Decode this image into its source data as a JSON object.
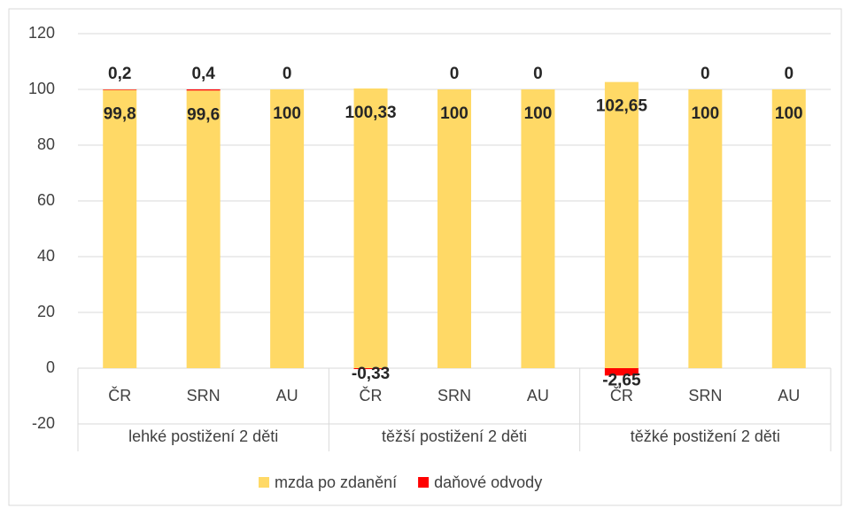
{
  "chart_data": {
    "type": "stacked_bar",
    "categories": [
      "ČR",
      "SRN",
      "AU",
      "ČR",
      "SRN",
      "AU",
      "ČR",
      "SRN",
      "AU"
    ],
    "groups": [
      "lehké postižení 2 děti",
      "těžší postižení 2 děti",
      "těžké postižení 2 děti"
    ],
    "series": [
      {
        "name": "mzda po zdanění",
        "color": "#FFD966",
        "values": [
          99.8,
          99.6,
          100,
          100.33,
          100,
          100,
          102.65,
          100,
          100
        ],
        "value_labels": [
          "99,8",
          "99,6",
          "100",
          "100,33",
          "100",
          "100",
          "102,65",
          "100",
          "100"
        ]
      },
      {
        "name": "daňové odvody",
        "color": "#FF0000",
        "values": [
          0.2,
          0.4,
          0,
          -0.33,
          0,
          0,
          -2.65,
          0,
          0
        ],
        "value_labels": [
          "0,2",
          "0,4",
          "0",
          "-0,33",
          "0",
          "0",
          "-2,65",
          "0",
          "0"
        ]
      }
    ],
    "ylim": [
      -20,
      120
    ],
    "yticks": [
      -20,
      0,
      20,
      40,
      60,
      80,
      100,
      120
    ],
    "grid": true,
    "legend": "bottom"
  }
}
